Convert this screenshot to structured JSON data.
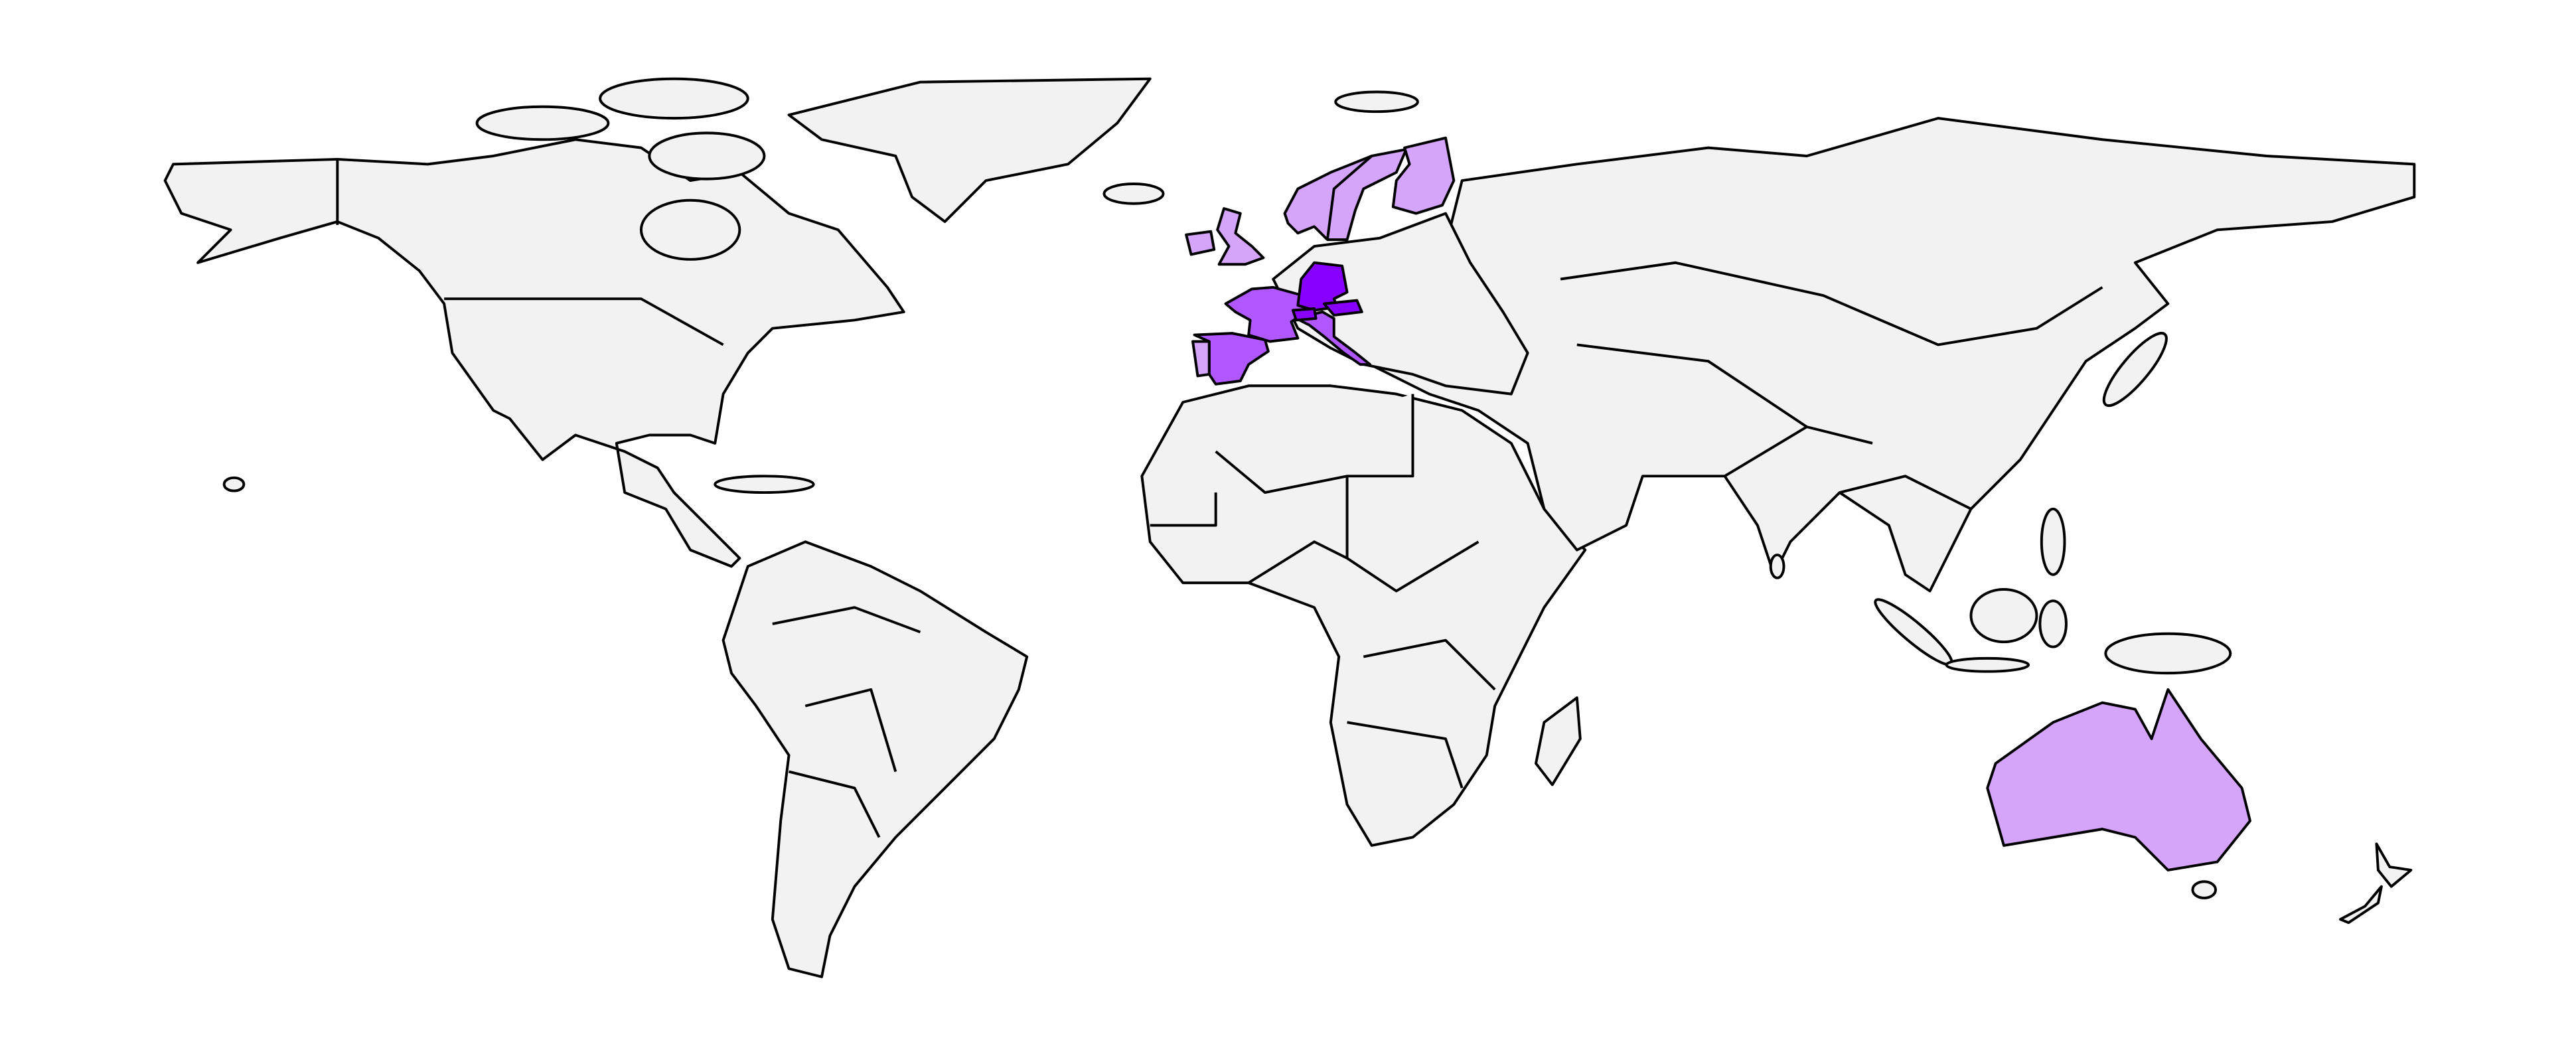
{
  "map": {
    "type": "choropleth",
    "projection": "world",
    "base_color": "#f2f2f2",
    "border_color": "#000000",
    "palette": {
      "1": "#d4a5fa",
      "2": "#b057ff",
      "3": "#8800ff"
    },
    "regions": [
      {
        "id": "norway-sweden",
        "level": 1
      },
      {
        "id": "finland",
        "level": 1
      },
      {
        "id": "united-kingdom",
        "level": 1
      },
      {
        "id": "ireland",
        "level": 1
      },
      {
        "id": "portugal",
        "level": 1
      },
      {
        "id": "australia",
        "level": 1
      },
      {
        "id": "france",
        "level": 2
      },
      {
        "id": "spain",
        "level": 2
      },
      {
        "id": "italy",
        "level": 2
      },
      {
        "id": "germany",
        "level": 3
      },
      {
        "id": "switzerland",
        "level": 3
      },
      {
        "id": "austria",
        "level": 3
      }
    ]
  }
}
